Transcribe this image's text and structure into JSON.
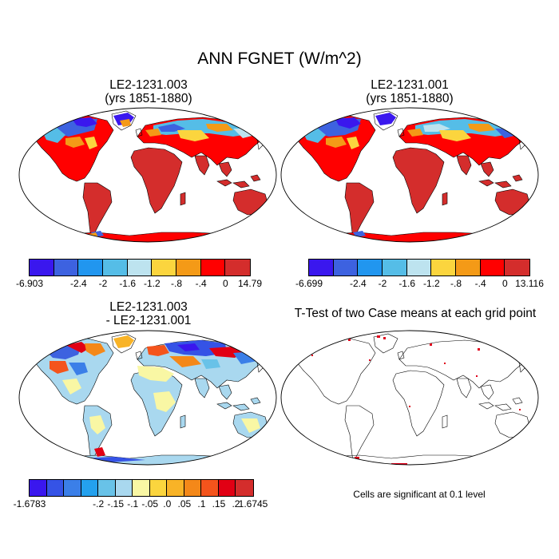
{
  "figure": {
    "title": "ANN FGNET (W/m^2)",
    "colors": {
      "land_ocean_outline": "#000000",
      "background": "#ffffff",
      "significance_marks": "#e0001b"
    }
  },
  "panels": [
    {
      "id": "case1",
      "title_line1": "LE2-1231.003",
      "title_line2": "(yrs 1851-1880)",
      "colorbar": {
        "colors": [
          "#3a17ee",
          "#3d62e0",
          "#2196ef",
          "#55bde7",
          "#bde3ef",
          "#fbd53e",
          "#f49a17",
          "#ff0000",
          "#d42d2c"
        ],
        "tick_labels": [
          "-6.903",
          "-2.4",
          "-2",
          "-1.6",
          "-1.2",
          "-.8",
          "-.4",
          "0",
          "14.79"
        ]
      }
    },
    {
      "id": "case2",
      "title_line1": "LE2-1231.001",
      "title_line2": "(yrs 1851-1880)",
      "colorbar": {
        "colors": [
          "#3a17ee",
          "#3d62e0",
          "#2196ef",
          "#55bde7",
          "#bde3ef",
          "#fbd53e",
          "#f49a17",
          "#ff0000",
          "#d42d2c"
        ],
        "tick_labels": [
          "-6.699",
          "-2.4",
          "-2",
          "-1.6",
          "-1.2",
          "-.8",
          "-.4",
          "0",
          "13.116"
        ]
      }
    },
    {
      "id": "difference",
      "title_line1": "LE2-1231.003",
      "title_line2": "- LE2-1231.001",
      "colorbar": {
        "colors": [
          "#3a17ee",
          "#3553e6",
          "#3b7fe8",
          "#24a1ee",
          "#68c2e8",
          "#a9d8ef",
          "#f9f7a4",
          "#fbd53e",
          "#f8b327",
          "#f48819",
          "#f4541c",
          "#e10014",
          "#d42d2c"
        ],
        "tick_labels": [
          "-1.6783",
          "-.2",
          "-.15",
          "-.1",
          "-.05",
          ".0",
          ".05",
          ".1",
          ".15",
          ".2",
          "1.6745"
        ]
      }
    },
    {
      "id": "ttest",
      "title_line1": "T-Test of two Case means at each grid point",
      "note": "Cells are significant at 0.1 level"
    }
  ]
}
